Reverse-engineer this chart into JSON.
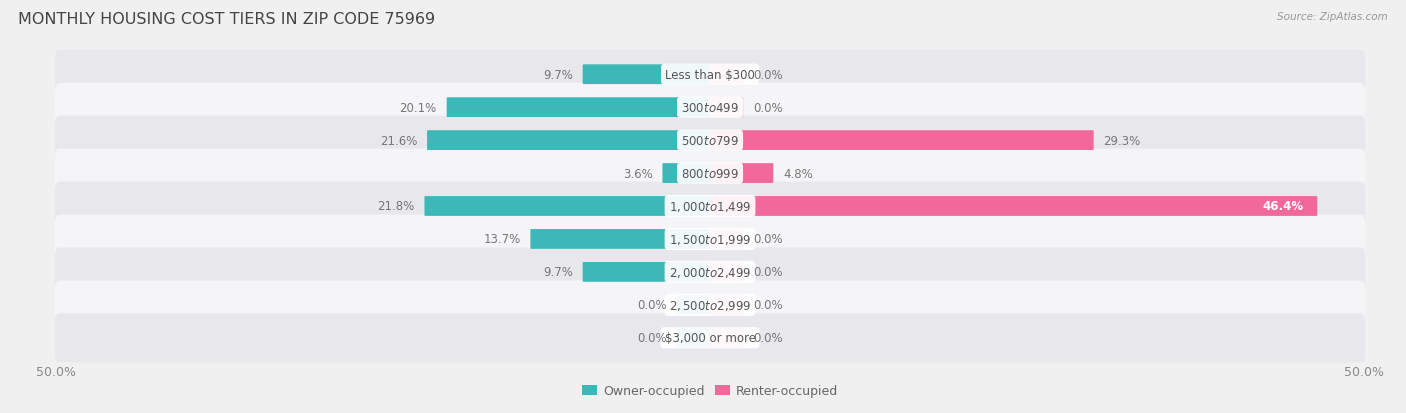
{
  "title": "MONTHLY HOUSING COST TIERS IN ZIP CODE 75969",
  "source": "Source: ZipAtlas.com",
  "categories": [
    "Less than $300",
    "$300 to $499",
    "$500 to $799",
    "$800 to $999",
    "$1,000 to $1,499",
    "$1,500 to $1,999",
    "$2,000 to $2,499",
    "$2,500 to $2,999",
    "$3,000 or more"
  ],
  "owner_values": [
    9.7,
    20.1,
    21.6,
    3.6,
    21.8,
    13.7,
    9.7,
    0.0,
    0.0
  ],
  "renter_values": [
    0.0,
    0.0,
    29.3,
    4.8,
    46.4,
    0.0,
    0.0,
    0.0,
    0.0
  ],
  "owner_color": "#3db8b8",
  "renter_color": "#f0699a",
  "owner_color_light": "#80cece",
  "renter_color_light": "#f5aac4",
  "bg_color": "#f0f0f0",
  "row_bg_even": "#e8e8ec",
  "row_bg_odd": "#f5f5f8",
  "axis_limit": 50.0,
  "zero_stub": 2.5,
  "title_fontsize": 11.5,
  "label_fontsize": 8.5,
  "tick_fontsize": 9,
  "legend_fontsize": 9,
  "cat_label_fontsize": 8.5
}
